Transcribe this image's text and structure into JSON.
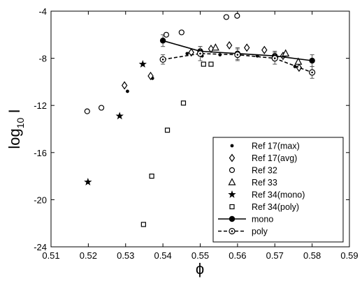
{
  "chart_data": {
    "type": "scatter",
    "xlabel": "ϕ",
    "ylabel_main": "log",
    "ylabel_sub": "10",
    "ylabel_tail": " I",
    "xlim": [
      0.51,
      0.59
    ],
    "ylim": [
      -24,
      -4
    ],
    "xticks": [
      "0.51",
      "0.52",
      "0.53",
      "0.54",
      "0.55",
      "0.56",
      "0.57",
      "0.58",
      "0.59"
    ],
    "yticks": [
      "-24",
      "-20",
      "-16",
      "-12",
      "-8",
      "-4"
    ],
    "legend_position": "lower-right",
    "series": [
      {
        "name": "Ref 17(max)",
        "marker": "dot",
        "points": [
          [
            0.5305,
            -10.8
          ],
          [
            0.5372,
            -9.7
          ],
          [
            0.5465,
            -7.6
          ],
          [
            0.5505,
            -7.8
          ],
          [
            0.5553,
            -7.7
          ],
          [
            0.5605,
            -7.7
          ],
          [
            0.5653,
            -7.8
          ],
          [
            0.5705,
            -7.9
          ],
          [
            0.5754,
            -8.7
          ]
        ]
      },
      {
        "name": "Ref 17(avg)",
        "marker": "diamond",
        "points": [
          [
            0.5297,
            -10.3
          ],
          [
            0.5367,
            -9.5
          ],
          [
            0.5476,
            -7.5
          ],
          [
            0.5529,
            -7.2
          ],
          [
            0.5578,
            -6.9
          ],
          [
            0.5625,
            -7.1
          ],
          [
            0.5672,
            -7.3
          ],
          [
            0.5722,
            -7.8
          ],
          [
            0.5765,
            -8.8
          ]
        ]
      },
      {
        "name": "Ref 32",
        "marker": "circle",
        "points": [
          [
            0.5197,
            -12.5
          ],
          [
            0.5235,
            -12.2
          ],
          [
            0.5409,
            -6.0
          ],
          [
            0.545,
            -5.8
          ],
          [
            0.557,
            -4.5
          ],
          [
            0.5599,
            -4.4
          ]
        ]
      },
      {
        "name": "Ref 33",
        "marker": "triangle",
        "points": [
          [
            0.5541,
            -7.1
          ],
          [
            0.5729,
            -7.6
          ],
          [
            0.5763,
            -8.3
          ]
        ]
      },
      {
        "name": "Ref 34(mono)",
        "marker": "star",
        "points": [
          [
            0.5199,
            -18.5
          ],
          [
            0.5284,
            -12.9
          ],
          [
            0.5346,
            -8.5
          ]
        ]
      },
      {
        "name": "Ref 34(poly)",
        "marker": "square",
        "points": [
          [
            0.5348,
            -22.1
          ],
          [
            0.537,
            -18.0
          ],
          [
            0.5412,
            -14.1
          ],
          [
            0.5455,
            -11.8
          ],
          [
            0.5509,
            -8.5
          ],
          [
            0.5529,
            -8.5
          ]
        ]
      },
      {
        "name": "mono",
        "marker": "filled-circle",
        "line": "solid",
        "points": [
          [
            0.54,
            -6.5
          ],
          [
            0.55,
            -7.4
          ],
          [
            0.56,
            -7.6
          ],
          [
            0.57,
            -7.8
          ],
          [
            0.58,
            -8.2
          ]
        ],
        "errors": [
          0.5,
          0.4,
          0.5,
          0.4,
          0.5
        ]
      },
      {
        "name": "poly",
        "marker": "circle-dot",
        "line": "dashed",
        "points": [
          [
            0.54,
            -8.1
          ],
          [
            0.55,
            -7.6
          ],
          [
            0.56,
            -7.7
          ],
          [
            0.57,
            -8.0
          ],
          [
            0.58,
            -9.2
          ]
        ],
        "errors": [
          0.4,
          0.6,
          0.5,
          0.5,
          0.5
        ]
      }
    ]
  }
}
